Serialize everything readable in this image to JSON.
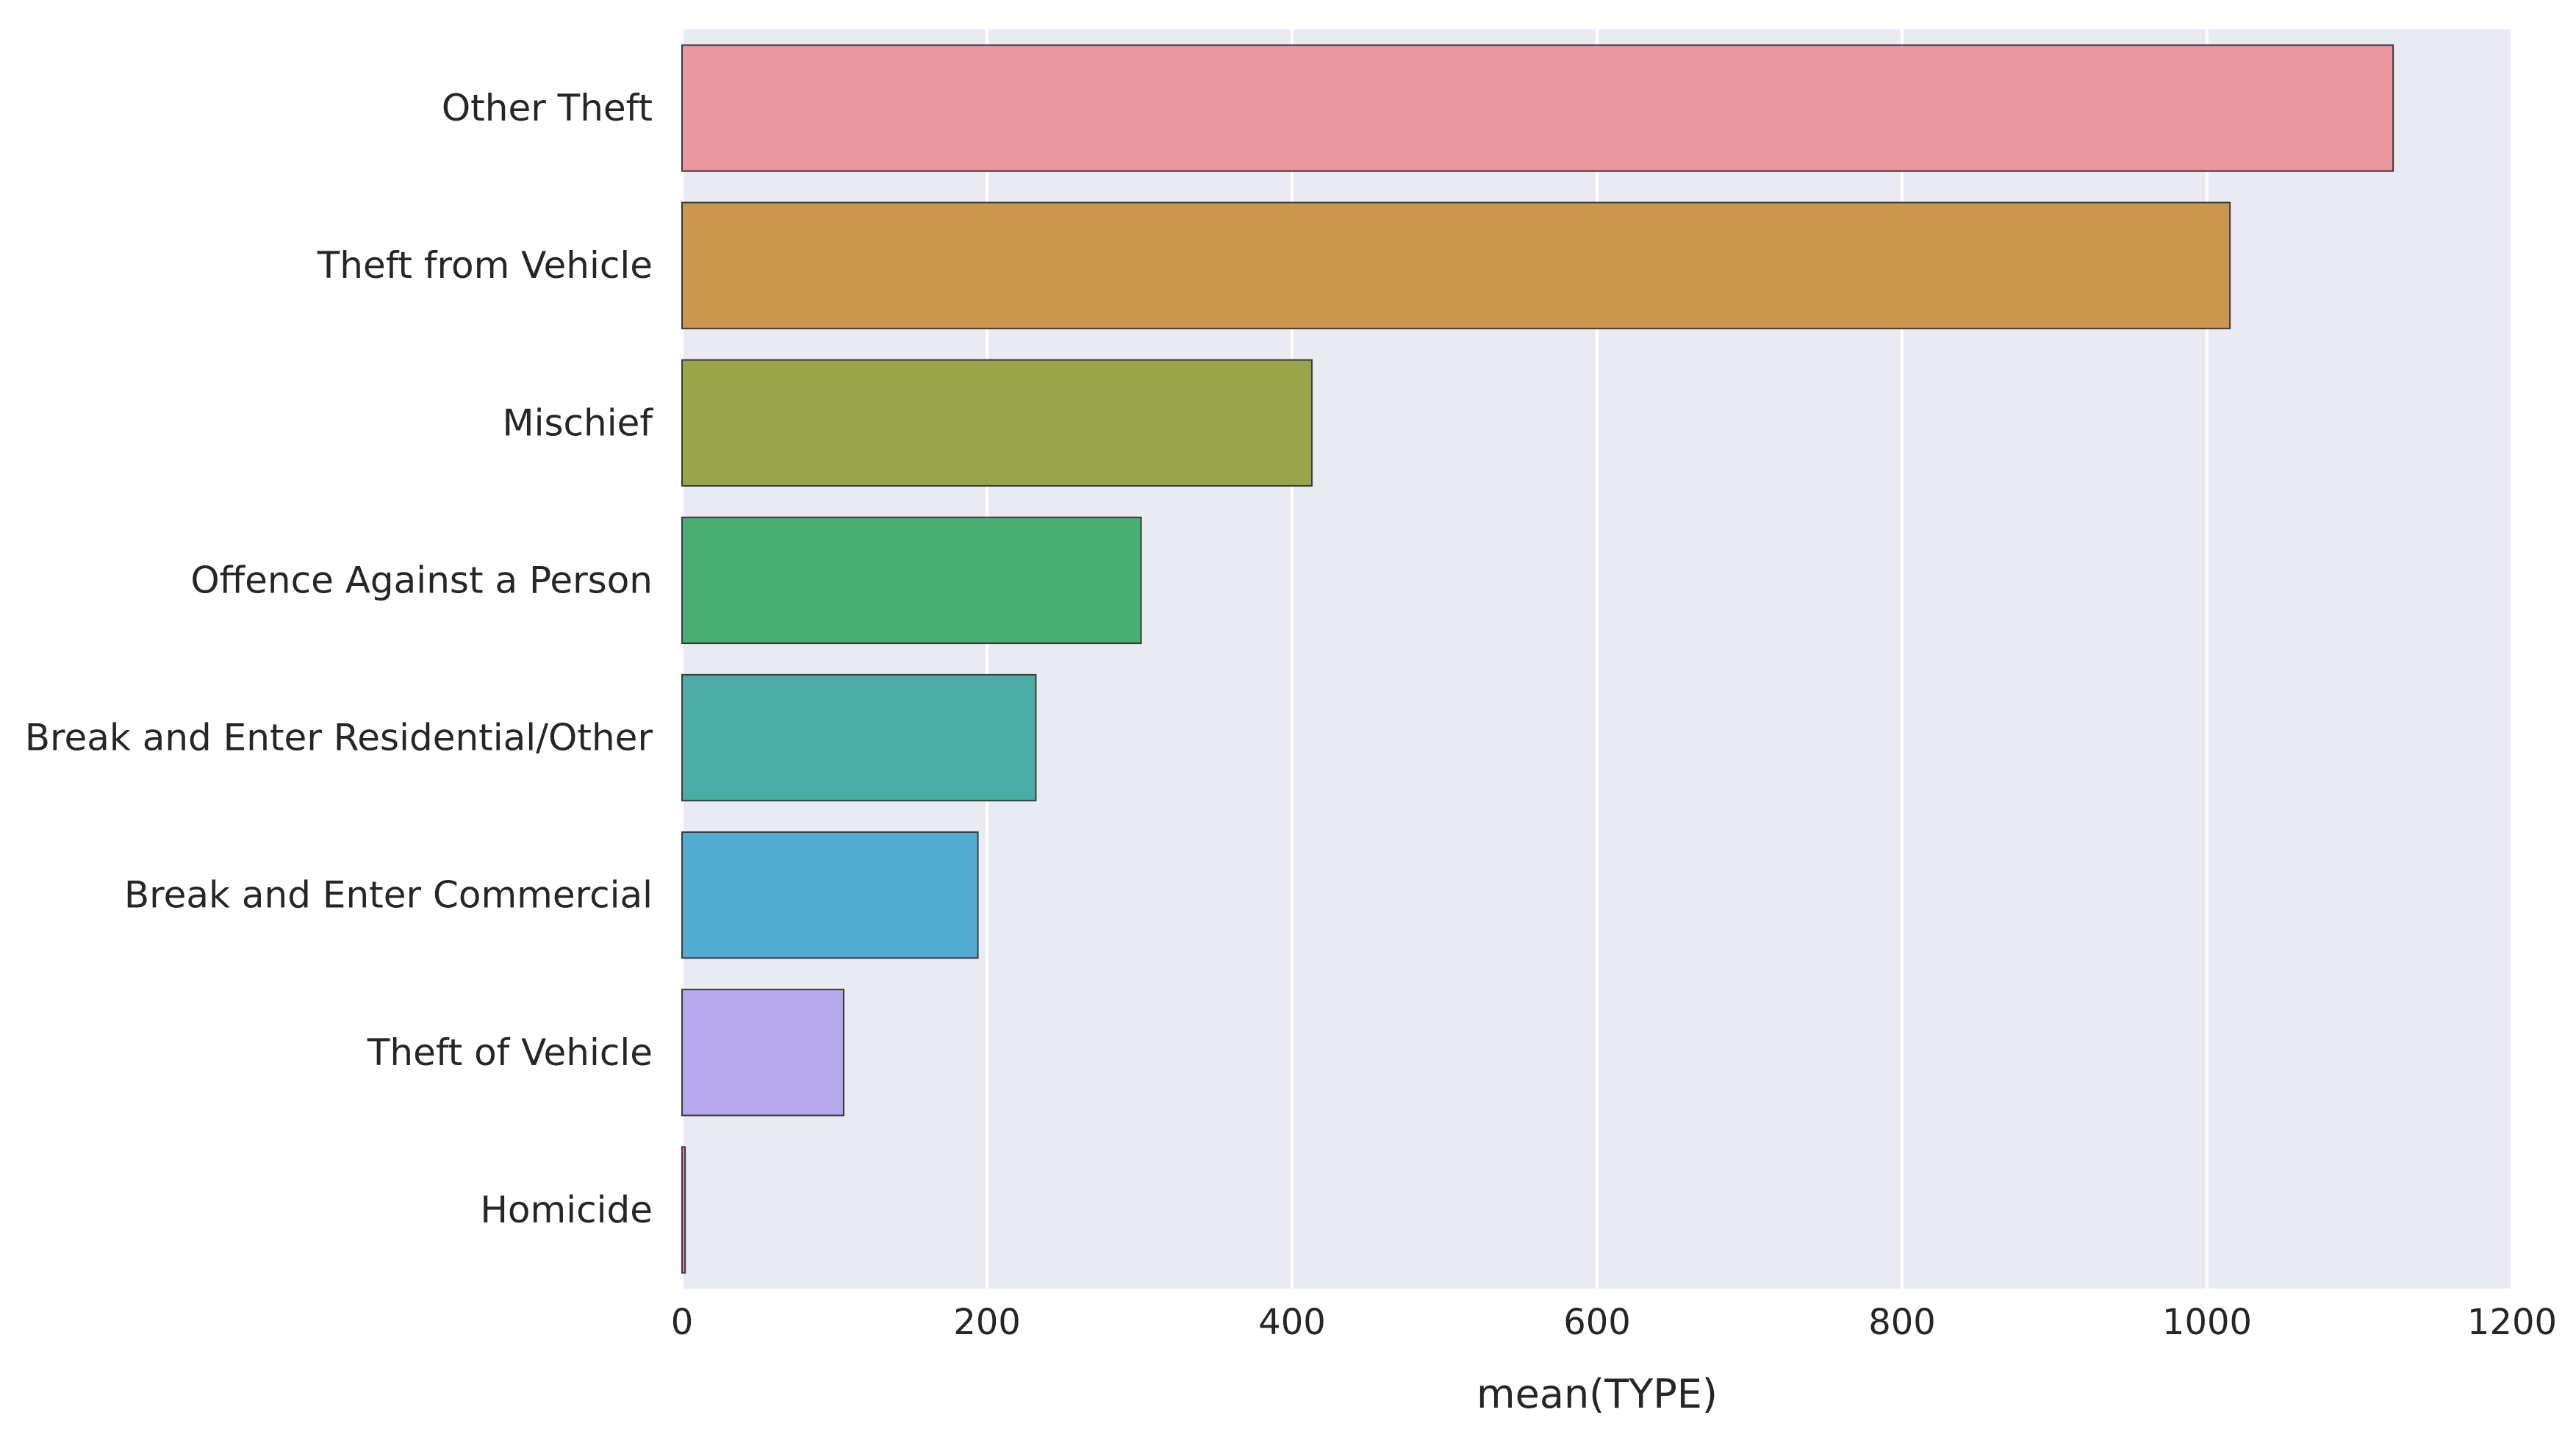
{
  "chart_data": {
    "type": "bar",
    "orientation": "horizontal",
    "categories": [
      "Other Theft",
      "Theft from Vehicle",
      "Mischief",
      "Offence Against a Person",
      "Break and Enter Residential/Other",
      "Break and Enter Commercial",
      "Theft of Vehicle",
      "Homicide"
    ],
    "values": [
      1122,
      1015,
      413,
      301,
      232,
      194,
      106,
      2
    ],
    "colors": [
      "#eb96a1",
      "#cb974d",
      "#99a54a",
      "#4aaf70",
      "#4caca6",
      "#52acd1",
      "#b5a9ec",
      "#e387c8"
    ],
    "xlabel": "mean(TYPE)",
    "ylabel": "",
    "xlim": [
      0,
      1200
    ],
    "xticks": [
      "0",
      "200",
      "400",
      "600",
      "800",
      "1000",
      "1200"
    ],
    "grid": true,
    "background": "#eaeaf2"
  }
}
